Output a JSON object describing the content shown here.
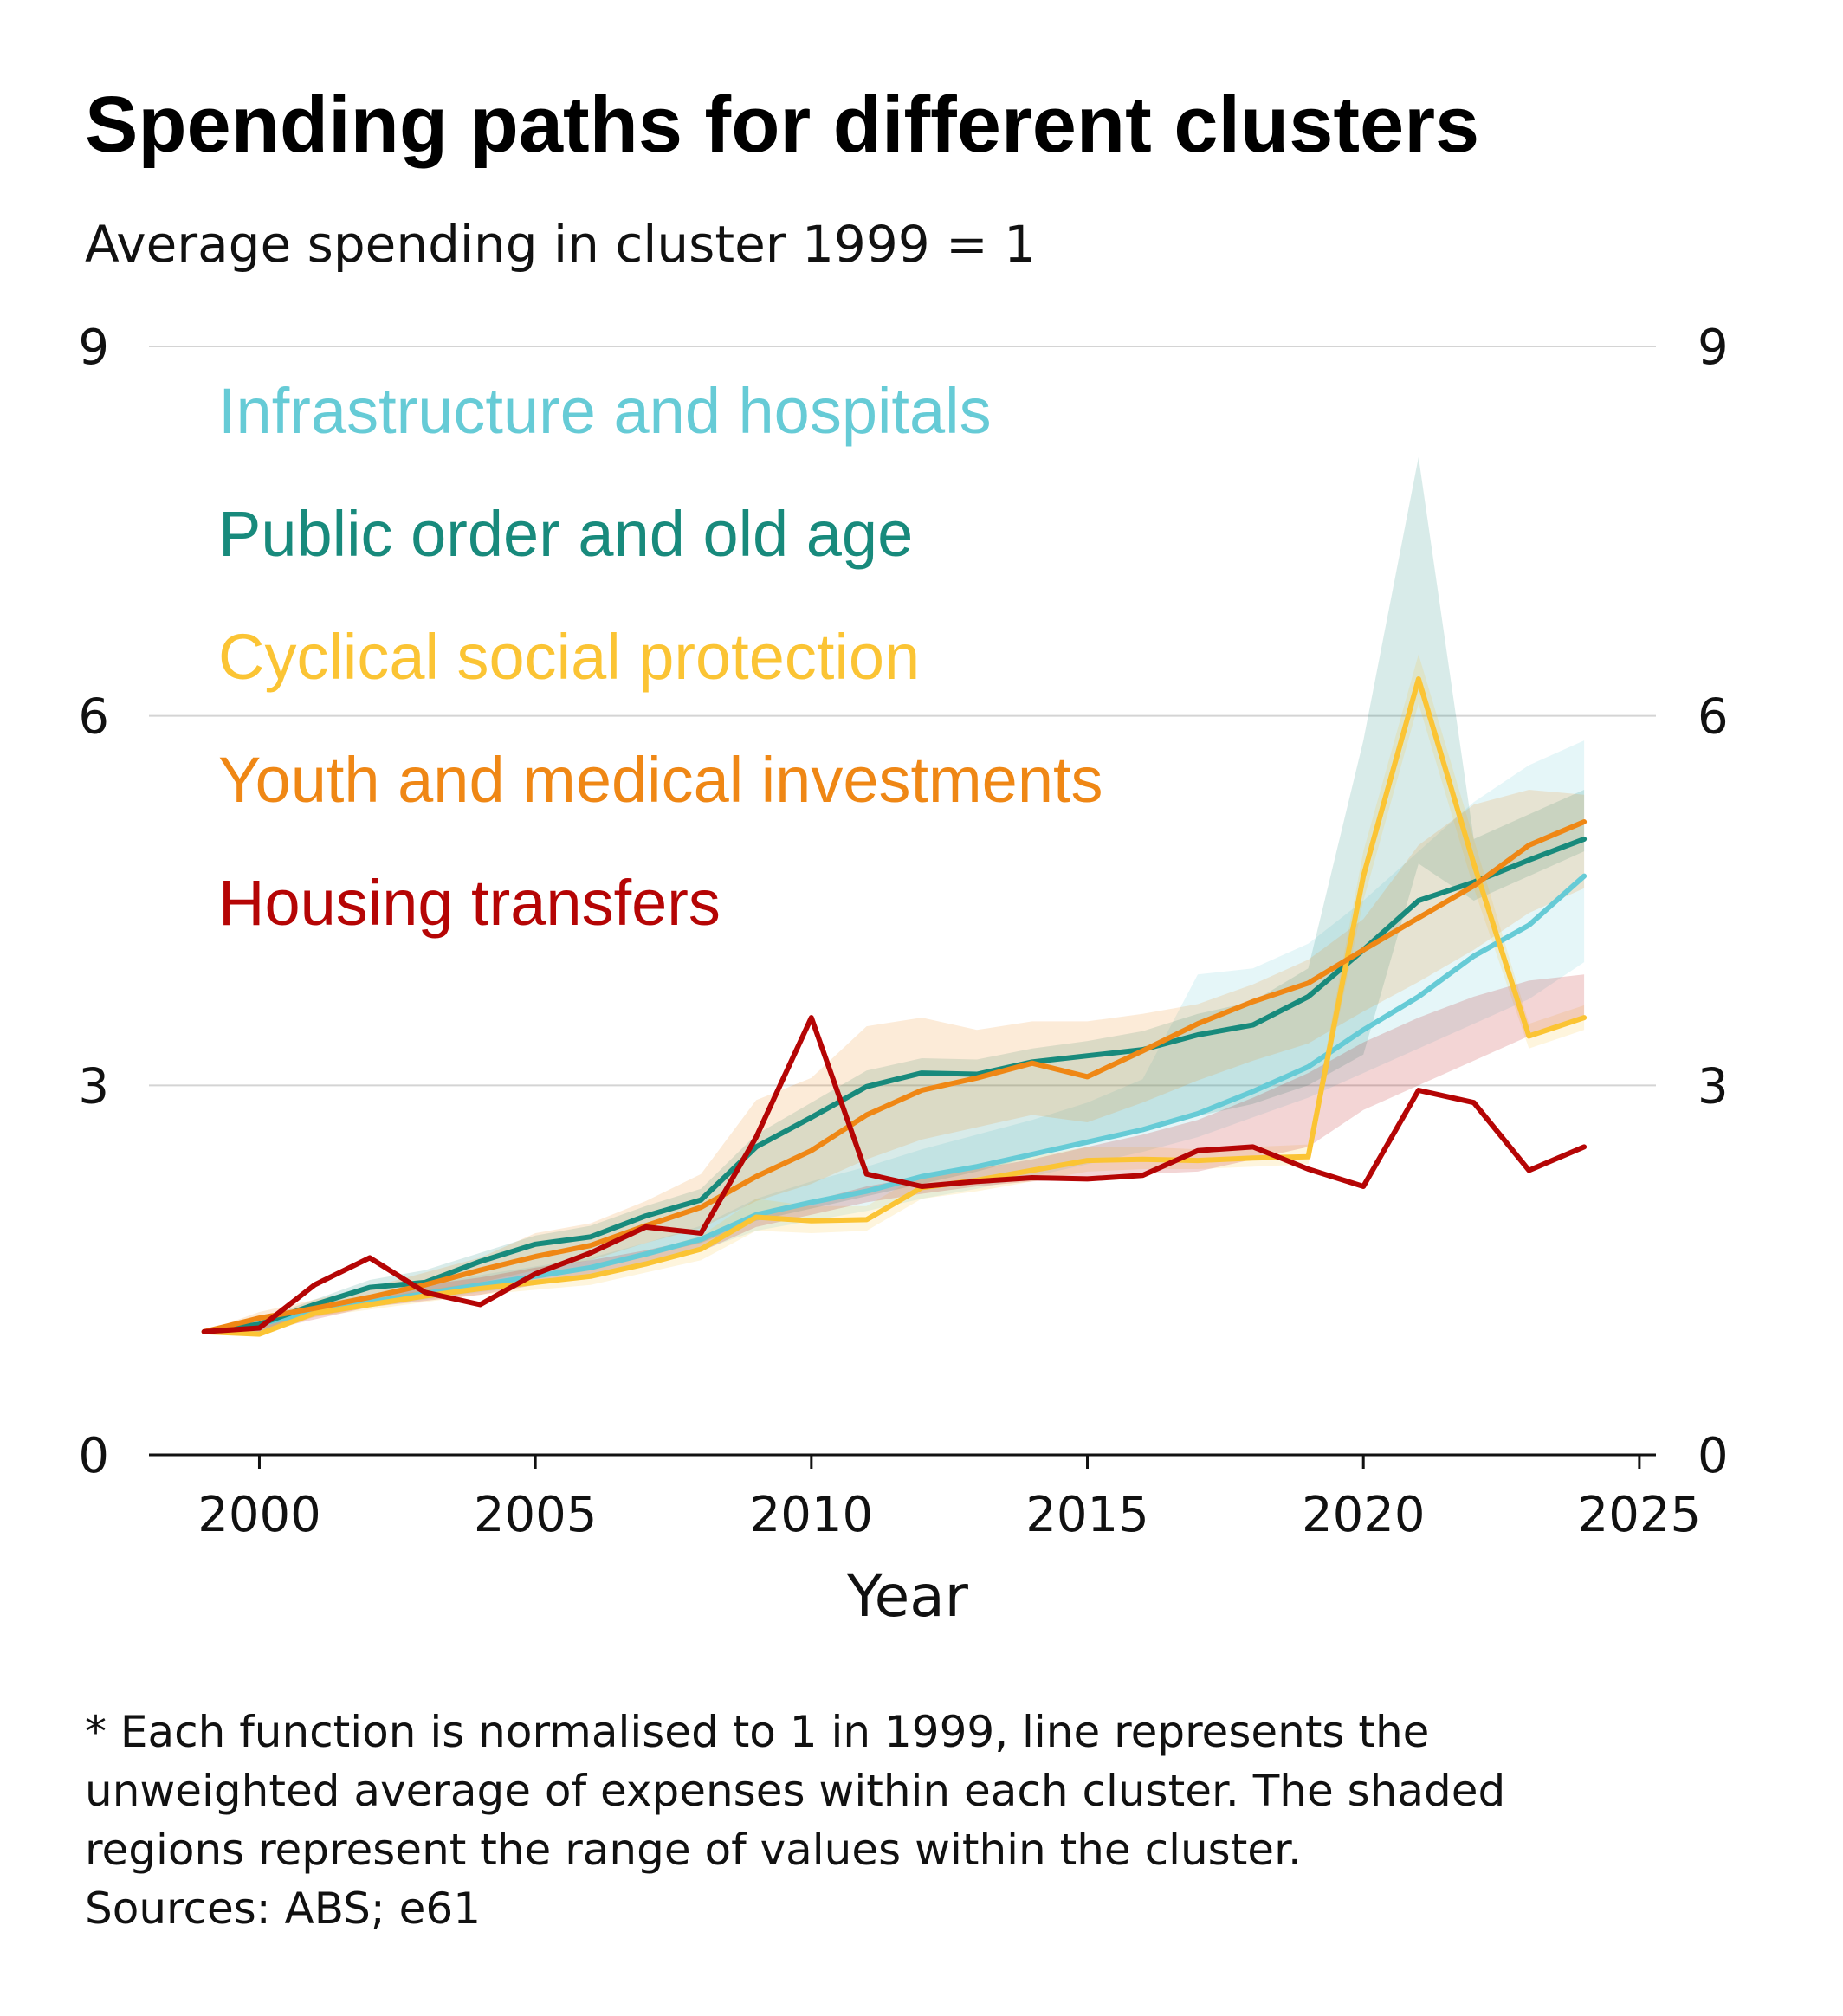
{
  "title": "Spending paths for different clusters",
  "subtitle": "Average spending in cluster 1999 = 1",
  "footnote": {
    "lines": [
      "* Each function is normalised to 1 in 1999, line represents the",
      "unweighted average of expenses within each cluster. The shaded",
      "regions represent the range of values within the cluster.",
      "Sources: ABS; e61"
    ]
  },
  "chart_data": {
    "type": "line",
    "title": "Spending paths for different clusters",
    "subtitle": "Average spending in cluster 1999 = 1",
    "xlabel": "Year",
    "ylabel": "",
    "xlim": [
      1998,
      2025.3
    ],
    "ylim": [
      0,
      9
    ],
    "x_ticks": [
      2000,
      2005,
      2010,
      2015,
      2020,
      2025
    ],
    "y_ticks": [
      0,
      3,
      6,
      9
    ],
    "y_axis_both_sides": true,
    "grid": "horizontal",
    "legend_placement": "top-left",
    "x": [
      1999,
      2000,
      2001,
      2002,
      2003,
      2004,
      2005,
      2006,
      2007,
      2008,
      2009,
      2010,
      2011,
      2012,
      2013,
      2014,
      2015,
      2016,
      2017,
      2018,
      2019,
      2020,
      2021,
      2022,
      2023,
      2024
    ],
    "series": [
      {
        "name": "Infrastructure and hospitals",
        "color": "#66cbd6",
        "values": [
          1.0,
          1.06,
          1.17,
          1.24,
          1.31,
          1.38,
          1.45,
          1.52,
          1.63,
          1.75,
          1.95,
          2.05,
          2.14,
          2.26,
          2.34,
          2.44,
          2.54,
          2.64,
          2.77,
          2.95,
          3.15,
          3.45,
          3.72,
          4.05,
          4.3,
          4.7
        ],
        "range_low": [
          1.0,
          1.0,
          1.13,
          1.2,
          1.26,
          1.32,
          1.38,
          1.45,
          1.55,
          1.66,
          1.82,
          1.9,
          1.98,
          2.08,
          2.16,
          2.26,
          2.36,
          2.46,
          2.58,
          2.74,
          2.9,
          3.1,
          3.3,
          3.5,
          3.7,
          4.0
        ],
        "range_high": [
          1.0,
          1.12,
          1.22,
          1.3,
          1.38,
          1.46,
          1.53,
          1.6,
          1.72,
          1.86,
          2.08,
          2.22,
          2.34,
          2.48,
          2.6,
          2.72,
          2.86,
          3.05,
          3.9,
          3.95,
          4.15,
          4.5,
          4.9,
          5.3,
          5.6,
          5.8
        ]
      },
      {
        "name": "Public order and old age",
        "color": "#188a7c",
        "values": [
          1.0,
          1.06,
          1.22,
          1.36,
          1.4,
          1.57,
          1.71,
          1.77,
          1.94,
          2.07,
          2.5,
          2.74,
          2.99,
          3.1,
          3.09,
          3.19,
          3.24,
          3.29,
          3.41,
          3.49,
          3.72,
          4.1,
          4.5,
          4.65,
          4.83,
          5.0
        ],
        "range_low": [
          1.0,
          1.0,
          1.14,
          1.22,
          1.28,
          1.36,
          1.44,
          1.52,
          1.62,
          1.72,
          1.9,
          2.0,
          2.1,
          2.2,
          2.3,
          2.42,
          2.55,
          2.66,
          2.75,
          2.85,
          3.0,
          3.25,
          4.8,
          4.5,
          4.7,
          4.9
        ],
        "range_high": [
          1.0,
          1.1,
          1.26,
          1.42,
          1.5,
          1.64,
          1.78,
          1.86,
          2.02,
          2.16,
          2.6,
          2.86,
          3.12,
          3.22,
          3.21,
          3.3,
          3.36,
          3.44,
          3.58,
          3.68,
          3.95,
          5.8,
          8.1,
          5.0,
          5.2,
          5.4
        ]
      },
      {
        "name": "Cyclical social protection",
        "color": "#fbc434",
        "values": [
          1.0,
          0.98,
          1.15,
          1.22,
          1.29,
          1.35,
          1.4,
          1.45,
          1.55,
          1.67,
          1.93,
          1.9,
          1.91,
          2.17,
          2.23,
          2.31,
          2.39,
          2.4,
          2.39,
          2.41,
          2.42,
          4.7,
          6.3,
          4.8,
          3.4,
          3.55
        ],
        "range_low": [
          1.0,
          0.96,
          1.12,
          1.18,
          1.24,
          1.3,
          1.34,
          1.38,
          1.48,
          1.58,
          1.82,
          1.8,
          1.82,
          2.08,
          2.14,
          2.22,
          2.3,
          2.32,
          2.32,
          2.34,
          2.36,
          4.5,
          6.1,
          4.6,
          3.3,
          3.45
        ],
        "range_high": [
          1.0,
          1.02,
          1.18,
          1.26,
          1.34,
          1.4,
          1.46,
          1.52,
          1.64,
          1.78,
          2.08,
          2.02,
          2.02,
          2.28,
          2.34,
          2.42,
          2.5,
          2.5,
          2.48,
          2.5,
          2.52,
          4.9,
          6.5,
          5.0,
          3.5,
          3.65
        ]
      },
      {
        "name": "Youth and medical investments",
        "color": "#ef8715",
        "values": [
          1.0,
          1.11,
          1.19,
          1.28,
          1.38,
          1.5,
          1.61,
          1.7,
          1.86,
          2.01,
          2.26,
          2.47,
          2.76,
          2.96,
          3.06,
          3.18,
          3.07,
          3.28,
          3.5,
          3.68,
          3.83,
          4.1,
          4.36,
          4.62,
          4.95,
          5.14
        ],
        "range_low": [
          1.0,
          1.02,
          1.12,
          1.2,
          1.3,
          1.4,
          1.5,
          1.58,
          1.72,
          1.84,
          2.06,
          2.2,
          2.4,
          2.56,
          2.66,
          2.76,
          2.7,
          2.86,
          3.04,
          3.2,
          3.34,
          3.6,
          3.84,
          4.1,
          4.4,
          4.6
        ],
        "range_high": [
          1.0,
          1.16,
          1.26,
          1.36,
          1.48,
          1.6,
          1.8,
          1.88,
          2.06,
          2.28,
          2.88,
          3.06,
          3.48,
          3.55,
          3.45,
          3.52,
          3.52,
          3.58,
          3.66,
          3.82,
          4.02,
          4.35,
          4.95,
          5.28,
          5.4,
          5.36
        ]
      },
      {
        "name": "Housing transfers",
        "color": "#b50505",
        "values": [
          1.0,
          1.03,
          1.38,
          1.6,
          1.32,
          1.22,
          1.47,
          1.64,
          1.85,
          1.8,
          2.58,
          3.55,
          2.28,
          2.18,
          2.22,
          2.25,
          2.24,
          2.27,
          2.47,
          2.5,
          2.32,
          2.18,
          2.96,
          2.86,
          2.31,
          2.5
        ],
        "range_low": [
          1.0,
          1.0,
          1.1,
          1.2,
          1.25,
          1.3,
          1.38,
          1.45,
          1.55,
          1.65,
          1.85,
          1.95,
          2.05,
          2.12,
          2.18,
          2.22,
          2.24,
          2.28,
          2.3,
          2.4,
          2.5,
          2.8,
          3.0,
          3.2,
          3.4,
          3.55
        ],
        "range_high": [
          1.0,
          1.06,
          1.2,
          1.3,
          1.38,
          1.44,
          1.52,
          1.58,
          1.66,
          1.76,
          1.95,
          2.06,
          2.18,
          2.26,
          2.32,
          2.4,
          2.5,
          2.6,
          2.72,
          2.9,
          3.1,
          3.35,
          3.55,
          3.72,
          3.85,
          3.9
        ]
      }
    ]
  }
}
